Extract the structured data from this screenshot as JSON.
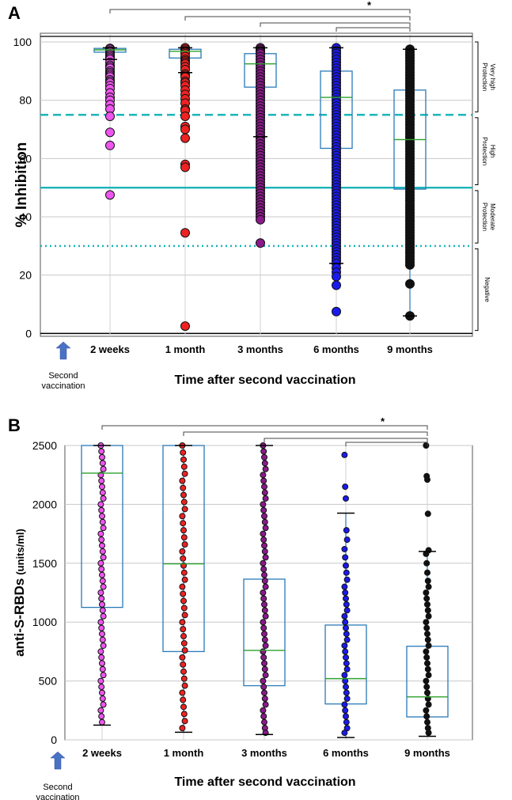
{
  "arrow_note": [
    "Second",
    "vaccination"
  ],
  "chart_data": [
    {
      "panel": "A",
      "type": "box",
      "ylabel": "% Inhibition",
      "xlabel": "Time after second vaccination",
      "ylim": [
        -1,
        103
      ],
      "yticks": [
        0,
        20,
        40,
        60,
        80,
        100
      ],
      "grid": true,
      "categories": [
        "2 weeks",
        "1 month",
        "3 months",
        "6 months",
        "9 months"
      ],
      "colors": [
        "#ee55ee",
        "#ee2222",
        "#8a1a8a",
        "#1a1aee",
        "#111111"
      ],
      "boxes": [
        {
          "q1": 96.5,
          "median": 97.3,
          "q3": 97.8,
          "wlo": 94,
          "whi": 98
        },
        {
          "q1": 94.5,
          "median": 96.8,
          "q3": 97.5,
          "wlo": 89.5,
          "whi": 98
        },
        {
          "q1": 84.5,
          "median": 92.5,
          "q3": 96,
          "wlo": 67.5,
          "whi": 98
        },
        {
          "q1": 63.5,
          "median": 81,
          "q3": 90,
          "wlo": 24,
          "whi": 98
        },
        {
          "q1": 49.5,
          "median": 66.5,
          "q3": 83.5,
          "wlo": 6,
          "whi": 97.5
        }
      ],
      "outliers": [
        [
          97.8,
          97.5,
          97,
          96.5,
          96,
          95.5,
          95,
          94.5,
          94,
          93,
          92,
          91.5,
          91,
          90,
          89.5,
          89,
          88.5,
          88,
          87,
          86.5,
          86,
          85,
          84,
          82.5,
          81,
          80,
          78.5,
          77,
          74.5,
          69,
          64.5,
          47.5
        ],
        [
          98,
          97.5,
          97,
          96.5,
          96,
          95,
          94,
          93.5,
          93,
          92.5,
          91.5,
          90.5,
          89,
          88.5,
          88,
          86.5,
          86,
          85,
          83.5,
          82,
          80.5,
          79,
          77,
          76.5,
          74.5,
          71,
          70,
          67,
          58,
          57,
          34.5,
          2.5
        ],
        [
          98,
          97.5,
          97,
          96.5,
          96,
          95,
          94,
          93,
          92,
          91,
          90,
          89,
          88,
          87,
          86,
          85,
          84,
          83,
          82,
          81,
          80,
          79,
          78,
          77,
          76,
          75,
          74,
          73,
          72,
          71,
          70,
          69,
          68,
          67,
          66,
          65,
          64,
          63,
          62,
          61,
          60,
          59,
          58,
          57,
          56,
          55,
          54,
          53,
          52,
          51,
          50,
          49,
          48,
          47,
          46,
          45,
          44,
          43,
          42,
          41,
          40,
          39,
          31
        ],
        [
          98,
          97,
          96,
          95,
          94,
          93,
          92,
          91,
          90,
          89,
          88,
          87,
          86,
          85,
          84,
          83,
          82,
          81,
          80,
          79,
          78,
          77,
          76,
          75,
          74,
          73,
          72,
          71,
          70,
          69,
          68,
          67,
          66,
          65,
          64,
          63,
          62,
          61,
          60,
          59,
          58,
          57,
          56,
          55,
          54,
          53,
          52,
          51,
          50,
          49,
          48,
          47,
          46,
          45,
          44,
          43,
          42,
          41,
          40,
          39,
          38,
          37,
          36,
          35,
          34,
          33,
          32,
          31,
          30,
          29,
          28,
          27,
          26,
          25,
          24,
          22.5,
          21,
          19.5,
          16.5,
          7.5
        ],
        [
          97.5,
          96.5,
          95.5,
          94.5,
          93.5,
          92.5,
          91.5,
          90.5,
          89.5,
          88.5,
          87.5,
          86.5,
          85.5,
          84.5,
          83.5,
          82.5,
          81.5,
          80.5,
          79.5,
          78.5,
          77.5,
          76.5,
          75.5,
          74.5,
          73.5,
          72.5,
          71.5,
          70.5,
          69.5,
          68.5,
          67.5,
          66.5,
          65.5,
          64.5,
          63.5,
          62.5,
          61.5,
          60.5,
          59.5,
          58.5,
          57.5,
          56.5,
          55.5,
          54.5,
          53.5,
          52.5,
          51.5,
          50.5,
          49.5,
          48.5,
          47.5,
          46.5,
          45.5,
          44.5,
          43.5,
          42.5,
          41.5,
          40.5,
          39.5,
          38.5,
          37.5,
          36.5,
          35.5,
          34.5,
          33.5,
          32.5,
          31.5,
          30.5,
          29.5,
          28.5,
          27.5,
          26.5,
          25.5,
          24.5,
          23.5,
          17,
          6
        ]
      ],
      "threshold_lines": [
        {
          "y": 75,
          "style": "dashed",
          "color": "#19b5b8"
        },
        {
          "y": 50,
          "style": "solid",
          "color": "#19b5b8"
        },
        {
          "y": 30,
          "style": "dotted",
          "color": "#19b5b8"
        }
      ],
      "zones": [
        {
          "lines": [
            "Very high",
            "Protection"
          ],
          "lo": 76,
          "hi": 100
        },
        {
          "lines": [
            "High",
            "Protection"
          ],
          "lo": 51,
          "hi": 74
        },
        {
          "lines": [
            "Moderate",
            "Protection"
          ],
          "lo": 31,
          "hi": 49
        },
        {
          "lines": [
            "Negative"
          ],
          "lo": 1,
          "hi": 29
        }
      ],
      "significance": {
        "label": "*",
        "from": 0,
        "to": 4,
        "brackets": [
          0,
          1,
          2,
          3
        ]
      }
    },
    {
      "panel": "B",
      "type": "box",
      "ylabel": "anti-S-RBDs",
      "ylabel_unit": "(units/ml)",
      "xlabel": "Time after second vaccination",
      "ylim": [
        0,
        2500
      ],
      "yticks": [
        0,
        500,
        1000,
        1500,
        2000,
        2500
      ],
      "grid": true,
      "categories": [
        "2 weeks",
        "1 month",
        "3 months",
        "6 months",
        "9 months"
      ],
      "colors": [
        "#ee55ee",
        "#ee2222",
        "#8a1a8a",
        "#1a1aee",
        "#111111"
      ],
      "boxes": [
        {
          "q1": 1125,
          "median": 2265,
          "q3": 2500,
          "wlo": 125,
          "whi": 2500
        },
        {
          "q1": 750,
          "median": 1495,
          "q3": 2500,
          "wlo": 65,
          "whi": 2500
        },
        {
          "q1": 460,
          "median": 760,
          "q3": 1365,
          "wlo": 45,
          "whi": 2500
        },
        {
          "q1": 305,
          "median": 520,
          "q3": 975,
          "wlo": 20,
          "whi": 1925
        },
        {
          "q1": 195,
          "median": 365,
          "q3": 795,
          "wlo": 30,
          "whi": 1600
        }
      ],
      "outliers": [
        [
          2500,
          2450,
          2400,
          2350,
          2300,
          2250,
          2200,
          2150,
          2100,
          2050,
          2000,
          1950,
          1900,
          1850,
          1800,
          1750,
          1700,
          1650,
          1600,
          1550,
          1500,
          1450,
          1400,
          1350,
          1300,
          1250,
          1200,
          1150,
          1100,
          1050,
          1000,
          950,
          900,
          850,
          800,
          750,
          700,
          650,
          600,
          550,
          500,
          450,
          400,
          350,
          300,
          250,
          200,
          150
        ],
        [
          2500,
          2440,
          2380,
          2320,
          2260,
          2200,
          2140,
          2080,
          2020,
          1960,
          1900,
          1840,
          1780,
          1720,
          1660,
          1600,
          1540,
          1480,
          1420,
          1360,
          1300,
          1240,
          1180,
          1120,
          1060,
          1000,
          940,
          880,
          820,
          760,
          700,
          640,
          580,
          520,
          460,
          400,
          340,
          280,
          220,
          160,
          100
        ],
        [
          2500,
          2450,
          2400,
          2350,
          2300,
          2250,
          2200,
          2150,
          2100,
          2050,
          2000,
          1950,
          1900,
          1850,
          1800,
          1750,
          1700,
          1650,
          1600,
          1550,
          1500,
          1450,
          1400,
          1350,
          1300,
          1250,
          1200,
          1150,
          1100,
          1050,
          1000,
          950,
          900,
          850,
          800,
          750,
          700,
          650,
          600,
          550,
          500,
          450,
          400,
          350,
          300,
          250,
          200,
          150,
          100,
          60
        ],
        [
          2420,
          2150,
          2050,
          1780,
          1700,
          1620,
          1550,
          1480,
          1420,
          1360,
          1300,
          1250,
          1200,
          1150,
          1100,
          1050,
          1000,
          950,
          900,
          850,
          800,
          750,
          700,
          650,
          600,
          550,
          500,
          450,
          400,
          350,
          300,
          250,
          200,
          150,
          100,
          60
        ],
        [
          2500,
          2240,
          2210,
          1920,
          1610,
          1580,
          1500,
          1420,
          1350,
          1300,
          1250,
          1200,
          1150,
          1100,
          1050,
          1000,
          950,
          900,
          850,
          800,
          750,
          700,
          650,
          600,
          550,
          500,
          450,
          400,
          350,
          300,
          250,
          200,
          150,
          100,
          60
        ]
      ],
      "significance": {
        "label": "*",
        "from": 0,
        "to": 4,
        "brackets": [
          0,
          1,
          2,
          3
        ]
      }
    }
  ]
}
